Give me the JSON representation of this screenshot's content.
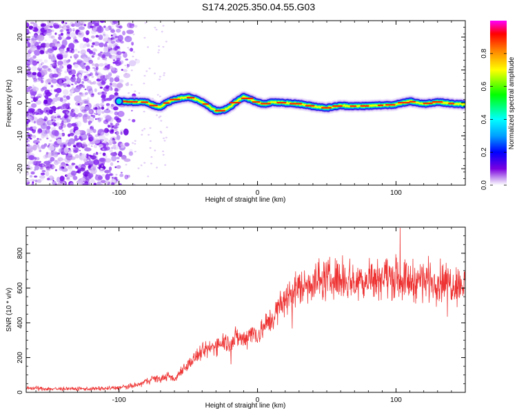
{
  "title": "S174.2025.350.04.55.G03",
  "chart_data": [
    {
      "type": "heatmap",
      "title": "",
      "xlabel": "Height of straight line (km)",
      "ylabel": "Frequency (Hz)",
      "xlim": [
        -167,
        150
      ],
      "ylim": [
        -25,
        25
      ],
      "xticks": [
        -100,
        0,
        100
      ],
      "xtick_labels": [
        "-100",
        "0",
        "100"
      ],
      "yticks": [
        -20,
        -10,
        0,
        10,
        20
      ],
      "ytick_labels": [
        "-20",
        "-10",
        "0",
        "10",
        "20"
      ],
      "trace_start_km": -100,
      "trace": {
        "x": [
          -100,
          -90,
          -80,
          -75,
          -70,
          -65,
          -60,
          -55,
          -50,
          -45,
          -40,
          -35,
          -30,
          -25,
          -20,
          -15,
          -10,
          -5,
          0,
          5,
          10,
          20,
          30,
          40,
          50,
          60,
          70,
          80,
          90,
          100,
          110,
          120,
          130,
          140,
          150
        ],
        "y": [
          0.5,
          0.3,
          0.2,
          -0.8,
          -1.2,
          0.2,
          1.0,
          1.5,
          1.8,
          1.2,
          0.3,
          -1.0,
          -2.5,
          -2.3,
          -1.2,
          0.5,
          1.8,
          1.0,
          0.1,
          -0.3,
          0.2,
          0.0,
          -0.3,
          -1.0,
          -1.5,
          -0.8,
          -1.0,
          -0.9,
          -0.7,
          -0.5,
          0.5,
          -0.3,
          0.3,
          -0.2,
          -0.5
        ]
      },
      "colorbar": {
        "label": "Normalized spectral amplitude",
        "range": [
          0,
          1
        ],
        "ticks": [
          0.0,
          0.2,
          0.4,
          0.6,
          0.8
        ],
        "tick_labels": [
          "0.0",
          "0.2",
          "0.4",
          "0.6",
          "0.8"
        ],
        "colors": [
          "#ffffff",
          "#c8a0f0",
          "#7a00e0",
          "#0000ff",
          "#00a0ff",
          "#00ffff",
          "#00ff00",
          "#ffff00",
          "#ff8000",
          "#ff0000",
          "#ff00ff"
        ]
      },
      "grid": false
    },
    {
      "type": "line",
      "title": "",
      "xlabel": "Height of straight line (km)",
      "ylabel": "SNR (10 * v/v)",
      "xlim": [
        -167,
        150
      ],
      "ylim": [
        0,
        950
      ],
      "xticks": [
        -100,
        0,
        100
      ],
      "xtick_labels": [
        "-100",
        "0",
        "100"
      ],
      "yticks": [
        0,
        200,
        400,
        600,
        800
      ],
      "ytick_labels": [
        "0",
        "200",
        "400",
        "600",
        "800"
      ],
      "series": [
        {
          "name": "SNR",
          "color": "#ee3333",
          "x": [
            -167,
            -150,
            -130,
            -110,
            -95,
            -85,
            -80,
            -75,
            -70,
            -65,
            -60,
            -55,
            -50,
            -45,
            -40,
            -35,
            -30,
            -25,
            -20,
            -15,
            -10,
            -5,
            0,
            5,
            10,
            15,
            20,
            25,
            30,
            40,
            50,
            60,
            70,
            80,
            90,
            100,
            110,
            120,
            130,
            140,
            150
          ],
          "values": [
            25,
            20,
            20,
            22,
            30,
            45,
            65,
            80,
            75,
            95,
            70,
            130,
            160,
            200,
            230,
            250,
            270,
            300,
            280,
            320,
            300,
            350,
            330,
            380,
            420,
            480,
            530,
            580,
            600,
            640,
            650,
            660,
            640,
            650,
            670,
            660,
            640,
            650,
            640,
            630,
            620
          ]
        }
      ],
      "grid": false
    }
  ]
}
